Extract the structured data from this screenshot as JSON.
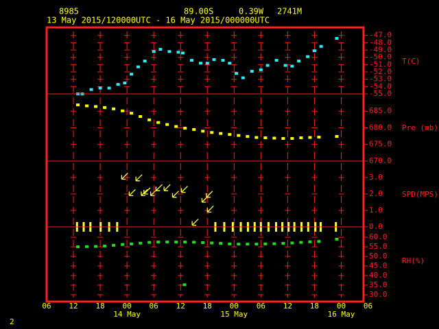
{
  "header": {
    "station": "8985",
    "lat": "89.00S",
    "lon": "0.39W",
    "elev": "2741M",
    "period": "13 May 2015/120000UTC - 16 May 2015/000000UTC"
  },
  "footer": "2",
  "chart_data": [
    {
      "type": "scatter",
      "y_label": "T(C)",
      "color": "#33e8f8",
      "xlim": [
        0,
        71
      ],
      "ylim": [
        -55,
        -45.9
      ],
      "yticks": [
        {
          "value": -47,
          "label": "-47.0"
        },
        {
          "value": -48,
          "label": "-48.0"
        },
        {
          "value": -49,
          "label": "-49.0"
        },
        {
          "value": -50,
          "label": "-50.0"
        },
        {
          "value": -51,
          "label": "-51.0"
        },
        {
          "value": -52,
          "label": "-52.0"
        },
        {
          "value": -53,
          "label": "-53.0"
        },
        {
          "value": -54,
          "label": "-54.0"
        },
        {
          "value": -55,
          "label": "-55.0"
        }
      ],
      "x": [
        7,
        8,
        10,
        12,
        14,
        16,
        17.5,
        19,
        20.5,
        22,
        24,
        25.5,
        27.5,
        29.5,
        30.5,
        32.5,
        34.5,
        36,
        37.5,
        39.5,
        41,
        42.5,
        44,
        46,
        48,
        49.5,
        51.5,
        53.5,
        55,
        56.5,
        58.5,
        60,
        61.5,
        65
      ],
      "values": [
        -55.0,
        -55.0,
        -54.4,
        -54.2,
        -54.2,
        -53.7,
        -53.5,
        -52.3,
        -51.3,
        -50.5,
        -49.2,
        -48.9,
        -49.2,
        -49.3,
        -49.4,
        -50.4,
        -50.8,
        -50.8,
        -50.3,
        -50.4,
        -50.8,
        -52.2,
        -52.8,
        -51.9,
        -51.7,
        -51.1,
        -50.4,
        -51.1,
        -51.2,
        -50.5,
        -49.9,
        -49.1,
        -48.5,
        -47.4
      ]
    },
    {
      "type": "scatter",
      "y_label": "Pre (mb)",
      "color": "#ffff00",
      "xlim": [
        0,
        71
      ],
      "ylim": [
        670,
        690.2
      ],
      "yticks": [
        {
          "value": 685,
          "label": "685.0"
        },
        {
          "value": 680,
          "label": "680.0"
        },
        {
          "value": 675,
          "label": "675.0"
        },
        {
          "value": 670,
          "label": "670.0"
        }
      ],
      "x": [
        7,
        9,
        11,
        13,
        15,
        17,
        19,
        21,
        23,
        25,
        27,
        29,
        31,
        33,
        35,
        37,
        39,
        41,
        43,
        45,
        47,
        49,
        51,
        53,
        55,
        57,
        59,
        61,
        65
      ],
      "values": [
        686.9,
        686.6,
        686.4,
        686.1,
        685.7,
        685.1,
        684.4,
        683.4,
        682.4,
        681.6,
        681.0,
        680.4,
        679.9,
        679.5,
        679.0,
        678.6,
        678.3,
        678.0,
        677.7,
        677.4,
        677.1,
        677.0,
        676.9,
        676.8,
        676.8,
        677.0,
        677.1,
        677.2,
        677.4
      ]
    },
    {
      "type": "wind",
      "y_label": "SPD(MPS)",
      "color": "#ffff40",
      "xlim": [
        0,
        71
      ],
      "ylim": [
        0,
        4.0
      ],
      "yticks": [
        {
          "value": 3,
          "label": "3.0"
        },
        {
          "value": 2,
          "label": "2.0"
        },
        {
          "value": 1,
          "label": "1.0"
        },
        {
          "value": 0,
          "label": "0.0"
        }
      ],
      "x": [
        6.8,
        8.3,
        9.8,
        12.1,
        14,
        15.8,
        16.8,
        18.5,
        20.0,
        21.2,
        21.8,
        23.3,
        24.5,
        26.3,
        28.2,
        30.2,
        32.6,
        34.8,
        35.8,
        36.0,
        37.8,
        39.8,
        41.7,
        43.5,
        45.1,
        46.6,
        48,
        49.7,
        51.4,
        52.8,
        54.2,
        55.5,
        57.1,
        58.6,
        60.2,
        61.4,
        64.8
      ],
      "values": [
        0,
        0,
        0,
        0,
        0,
        0,
        2.9,
        1.9,
        2.8,
        1.9,
        2.0,
        1.9,
        2.2,
        2.2,
        1.8,
        2.1,
        0.1,
        1.5,
        1.8,
        0.9,
        0,
        0,
        0,
        0,
        0,
        0,
        0,
        0,
        0,
        0,
        0,
        0,
        0,
        0,
        0,
        0,
        0
      ]
    },
    {
      "type": "scatter",
      "y_label": "RH(%)",
      "color": "#22dd22",
      "xlim": [
        0,
        71
      ],
      "ylim": [
        26.4,
        65.4
      ],
      "yticks": [
        {
          "value": 60,
          "label": "60.0"
        },
        {
          "value": 55,
          "label": "55.0"
        },
        {
          "value": 50,
          "label": "50.0"
        },
        {
          "value": 45,
          "label": "45.0"
        },
        {
          "value": 40,
          "label": "40.0"
        },
        {
          "value": 35,
          "label": "35.0"
        },
        {
          "value": 30,
          "label": "30.0"
        }
      ],
      "xticks": [
        {
          "value": 0,
          "label": "06"
        },
        {
          "value": 6,
          "label": "12"
        },
        {
          "value": 12,
          "label": "18"
        },
        {
          "value": 18,
          "label": "00"
        },
        {
          "value": 24,
          "label": "06"
        },
        {
          "value": 30,
          "label": "12"
        },
        {
          "value": 36,
          "label": "18"
        },
        {
          "value": 42,
          "label": "00"
        },
        {
          "value": 48,
          "label": "06"
        },
        {
          "value": 54,
          "label": "12"
        },
        {
          "value": 60,
          "label": "18"
        },
        {
          "value": 66,
          "label": "00"
        },
        {
          "value": 72,
          "label": "06"
        }
      ],
      "date_labels": [
        {
          "value": 18,
          "label": "14 May"
        },
        {
          "value": 42,
          "label": "15 May"
        },
        {
          "value": 66,
          "label": "16 May"
        }
      ],
      "x": [
        7,
        9,
        11,
        13,
        15,
        17,
        19,
        21,
        23,
        25,
        27,
        29,
        30.9,
        31,
        33,
        35,
        37,
        39,
        41,
        43,
        45,
        47,
        49,
        51,
        53,
        55,
        57,
        59,
        61,
        65
      ],
      "values": [
        55.0,
        55.1,
        55.2,
        55.4,
        55.8,
        56.2,
        56.5,
        56.9,
        57.3,
        57.5,
        57.5,
        57.5,
        35.2,
        57.5,
        57.4,
        57.2,
        57.0,
        56.8,
        56.5,
        56.4,
        56.4,
        56.4,
        56.5,
        56.6,
        56.8,
        57.0,
        57.3,
        57.6,
        57.8,
        59.0
      ]
    }
  ]
}
